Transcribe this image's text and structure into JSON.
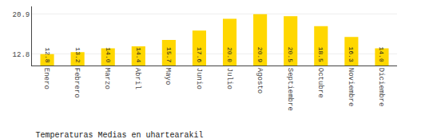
{
  "chart_data": {
    "type": "bar",
    "title": "Temperaturas Medias en uhartearakil",
    "categories": [
      "Enero",
      "Febrero",
      "Marzo",
      "Abril",
      "Mayo",
      "Junio",
      "Julio",
      "Agosto",
      "Septiembre",
      "Octubre",
      "Noviembre",
      "Diciembre"
    ],
    "values": [
      12.8,
      13.2,
      14.0,
      14.4,
      15.7,
      17.6,
      20.0,
      20.9,
      20.5,
      18.5,
      16.3,
      14.0
    ],
    "value_labels": [
      "12.8",
      "13.2",
      "14.0",
      "14.4",
      "15.7",
      "17.6",
      "20.0",
      "20.9",
      "20.5",
      "18.5",
      "16.3",
      "14.0"
    ],
    "data_labels": true,
    "color": "#FFD700",
    "ylim": [
      10.5,
      22.5
    ],
    "yticks": [
      12.8,
      20.9
    ],
    "y2lim": [
      10.5,
      22.5
    ],
    "y2ticks": [
      12.8,
      20.9
    ],
    "grid": true
  }
}
